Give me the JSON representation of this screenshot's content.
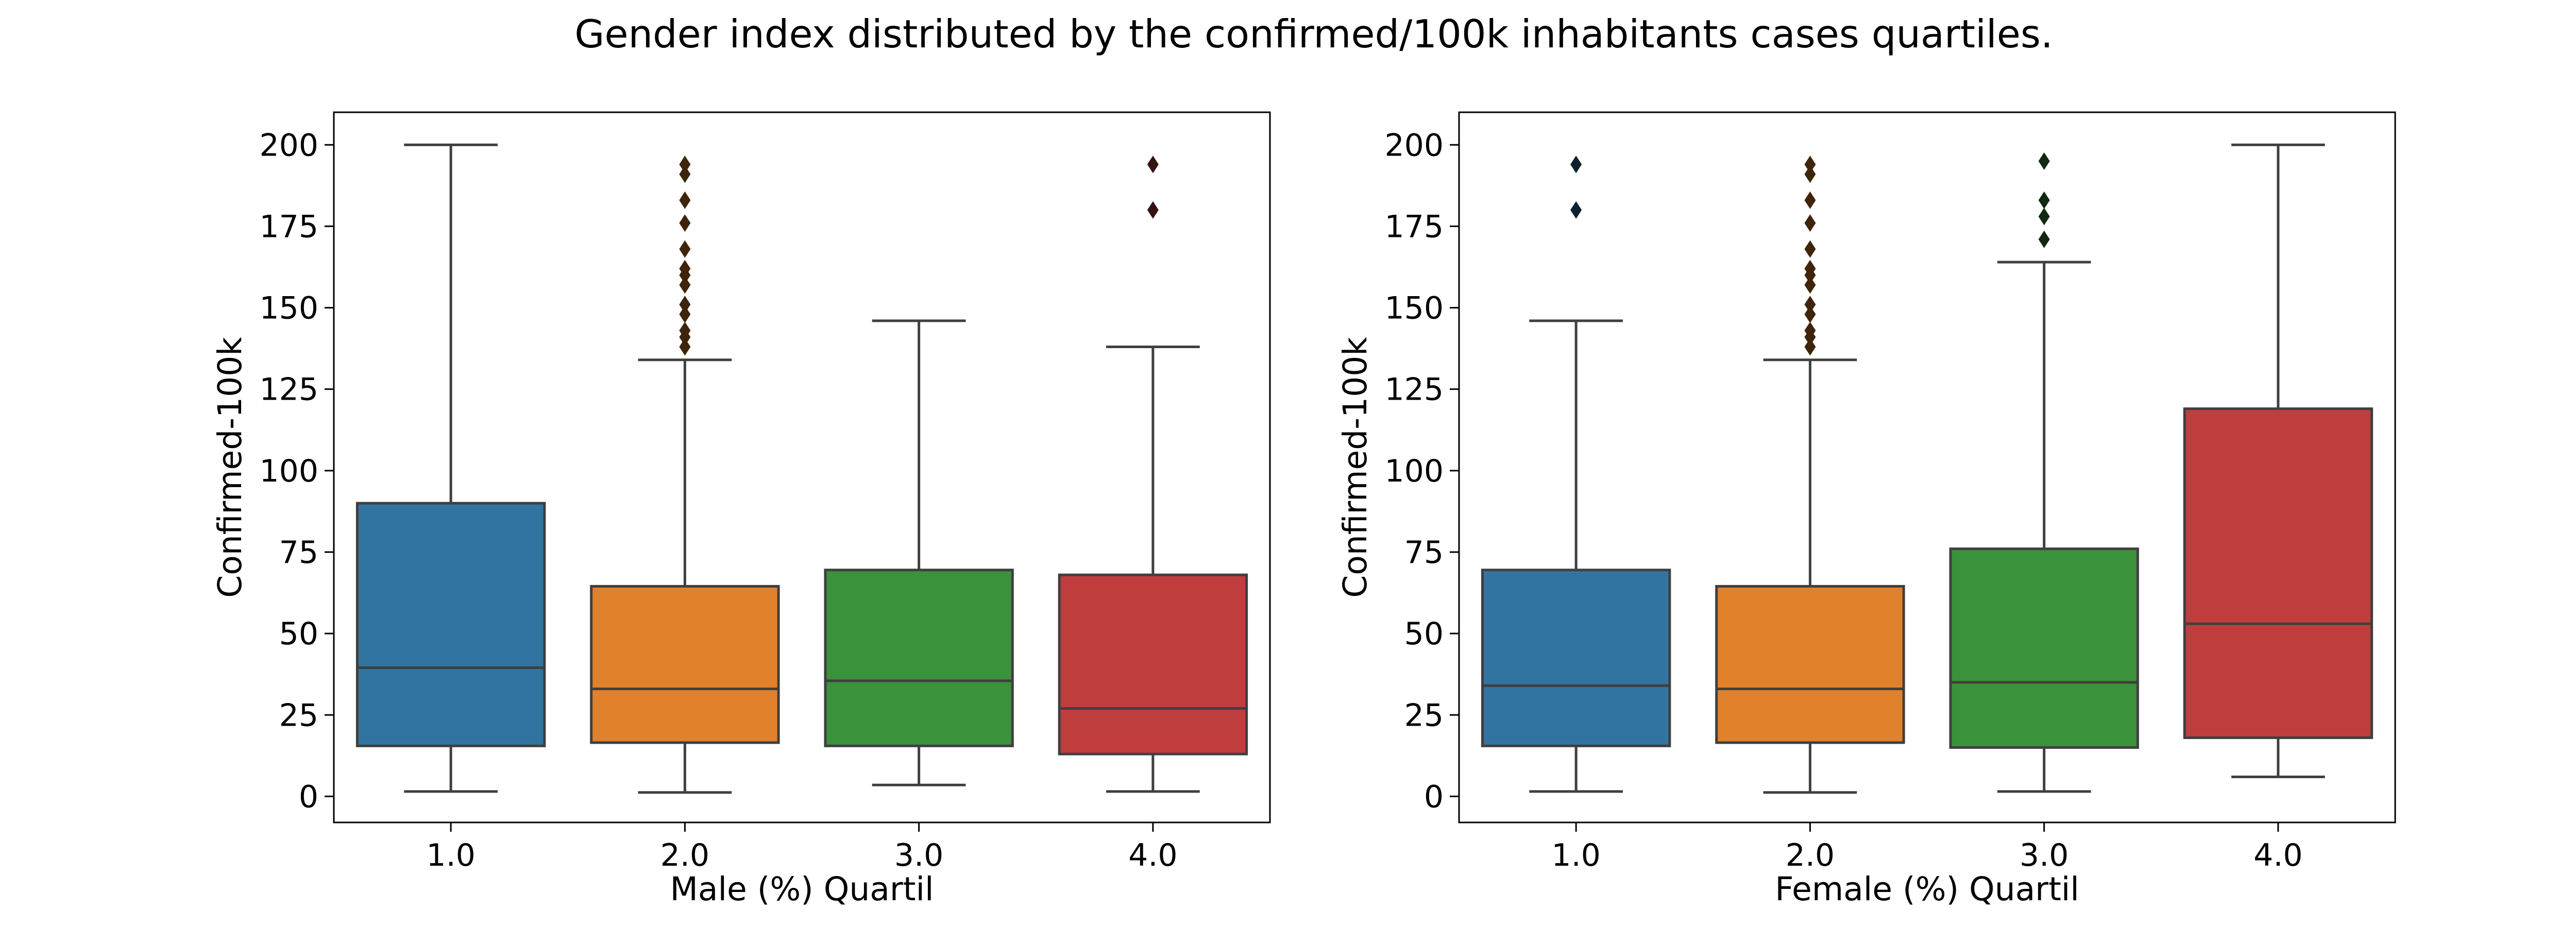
{
  "figure": {
    "title": "Gender index distributed by the confirmed/100k inhabitants cases quartiles."
  },
  "chart_data": [
    {
      "type": "box",
      "xlabel": "Male (%) Quartil",
      "ylabel": "Confirmed-100k",
      "ylim": [
        -8,
        210
      ],
      "yticks": [
        0,
        25,
        50,
        75,
        100,
        125,
        150,
        175,
        200
      ],
      "grid": false,
      "categories": [
        "1.0",
        "2.0",
        "3.0",
        "4.0"
      ],
      "colors": [
        "#3274a1",
        "#e1812c",
        "#3a923a",
        "#c03d3e"
      ],
      "boxes": [
        {
          "whisker_low": 1.5,
          "q1": 15.5,
          "median": 39.5,
          "q3": 90,
          "whisker_high": 200,
          "outliers": []
        },
        {
          "whisker_low": 1.2,
          "q1": 16.5,
          "median": 33,
          "q3": 64.5,
          "whisker_high": 134,
          "outliers": [
            138,
            141,
            143,
            148,
            151,
            157,
            160,
            162,
            168,
            176,
            183,
            191,
            194
          ]
        },
        {
          "whisker_low": 3.5,
          "q1": 15.5,
          "median": 35.5,
          "q3": 69.5,
          "whisker_high": 146,
          "outliers": []
        },
        {
          "whisker_low": 1.5,
          "q1": 13,
          "median": 27,
          "q3": 68,
          "whisker_high": 138,
          "outliers": [
            180,
            194
          ]
        }
      ]
    },
    {
      "type": "box",
      "xlabel": "Female (%) Quartil",
      "ylabel": "Confirmed-100k",
      "ylim": [
        -8,
        210
      ],
      "yticks": [
        0,
        25,
        50,
        75,
        100,
        125,
        150,
        175,
        200
      ],
      "grid": false,
      "categories": [
        "1.0",
        "2.0",
        "3.0",
        "4.0"
      ],
      "colors": [
        "#3274a1",
        "#e1812c",
        "#3a923a",
        "#c03d3e"
      ],
      "boxes": [
        {
          "whisker_low": 1.5,
          "q1": 15.5,
          "median": 34,
          "q3": 69.5,
          "whisker_high": 146,
          "outliers": [
            180,
            194
          ]
        },
        {
          "whisker_low": 1.2,
          "q1": 16.5,
          "median": 33,
          "q3": 64.5,
          "whisker_high": 134,
          "outliers": [
            138,
            141,
            143,
            148,
            151,
            157,
            160,
            162,
            168,
            176,
            183,
            191,
            194
          ]
        },
        {
          "whisker_low": 1.5,
          "q1": 15,
          "median": 35,
          "q3": 76,
          "whisker_high": 164,
          "outliers": [
            171,
            178,
            183,
            195
          ]
        },
        {
          "whisker_low": 6,
          "q1": 18,
          "median": 53,
          "q3": 119,
          "whisker_high": 200,
          "outliers": []
        }
      ]
    }
  ]
}
